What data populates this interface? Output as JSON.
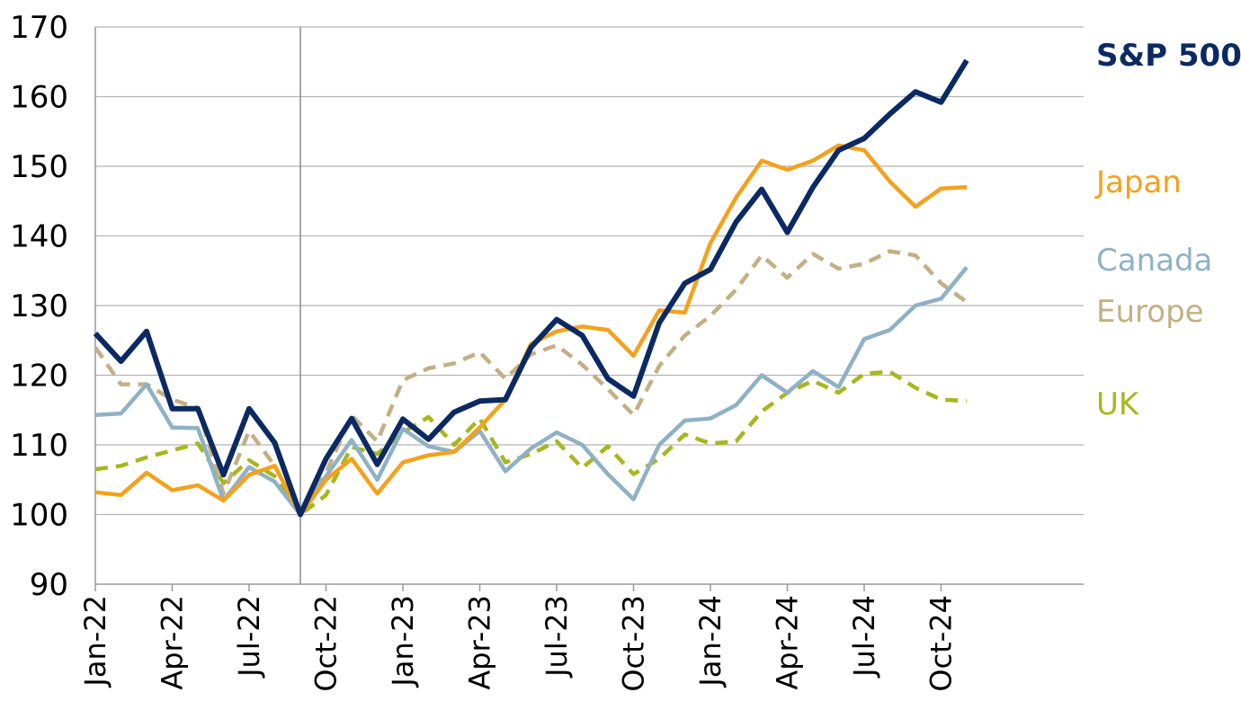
{
  "chart_data": {
    "type": "line",
    "title": "",
    "xlabel": "",
    "ylabel": "",
    "ylim": [
      90,
      170
    ],
    "yticks": [
      90,
      100,
      110,
      120,
      130,
      140,
      150,
      160,
      170
    ],
    "grid": "horizontal",
    "x_start": "Jan-22",
    "x_tick_labels": [
      "Jan-22",
      "Apr-22",
      "Jul-22",
      "Oct-22",
      "Jan-23",
      "Apr-23",
      "Jul-23",
      "Oct-23",
      "Jan-24",
      "Apr-24",
      "Jul-24",
      "Oct-24"
    ],
    "reference_line_x": "Sep-22",
    "series": [
      {
        "name": "S&P 500",
        "color": "#0b2a63",
        "style": "solid",
        "values": [
          126,
          122,
          126.3,
          115.2,
          115.2,
          105.7,
          115.2,
          110.3,
          100,
          108,
          113.8,
          107.2,
          113.7,
          110.8,
          114.7,
          116.3,
          116.5,
          124,
          128,
          125.7,
          119.5,
          117,
          127.5,
          133.2,
          135.2,
          142,
          146.7,
          140.5,
          147,
          152.3,
          154,
          157.5,
          160.7,
          159.2,
          165.2
        ]
      },
      {
        "name": "Japan",
        "color": "#f5a11c",
        "style": "solid",
        "values": [
          103.2,
          102.8,
          106,
          103.5,
          104.2,
          102,
          105.7,
          107,
          100,
          105,
          108,
          103,
          107.5,
          108.5,
          109,
          112.5,
          116.5,
          124.5,
          126.3,
          127,
          126.5,
          122.8,
          129.3,
          129,
          139,
          145.5,
          150.8,
          149.5,
          150.8,
          153,
          152.3,
          147.8,
          144.2,
          146.8,
          147
        ]
      },
      {
        "name": "Canada",
        "color": "#8fb1c4",
        "style": "solid",
        "values": [
          114.3,
          114.5,
          118.7,
          112.5,
          112.4,
          102,
          106.8,
          104.7,
          100,
          105.5,
          110.7,
          105,
          112.3,
          109.8,
          109,
          112,
          106.2,
          109.5,
          111.8,
          110,
          105.8,
          102.2,
          110,
          113.5,
          113.8,
          115.7,
          120,
          117.5,
          120.6,
          118.3,
          125.2,
          126.5,
          130,
          131,
          135.5
        ]
      },
      {
        "name": "Europe",
        "color": "#c2b084",
        "style": "dashed",
        "values": [
          124,
          118.7,
          118.7,
          116.5,
          115.3,
          103,
          112,
          107,
          100,
          106,
          114.2,
          110.5,
          119.3,
          121,
          121.7,
          123.3,
          119.5,
          123,
          124.3,
          121.5,
          118,
          114.3,
          121.3,
          125.7,
          128.5,
          132.3,
          137.2,
          134,
          137.4,
          135.3,
          136,
          137.8,
          137.2,
          133.2,
          130.5
        ]
      },
      {
        "name": "UK",
        "color": "#a6b71e",
        "style": "dashed",
        "values": [
          106.5,
          107,
          108.2,
          109.2,
          110.2,
          104.5,
          107.8,
          105.5,
          100,
          102.8,
          109.7,
          108.7,
          111.8,
          114,
          110,
          113.8,
          107.5,
          108.7,
          110.5,
          106.7,
          109.8,
          105.8,
          108,
          111.5,
          110.2,
          110.5,
          114.8,
          117.5,
          119.2,
          117.5,
          120.2,
          120.5,
          118.2,
          116.5,
          116.3
        ]
      }
    ]
  }
}
